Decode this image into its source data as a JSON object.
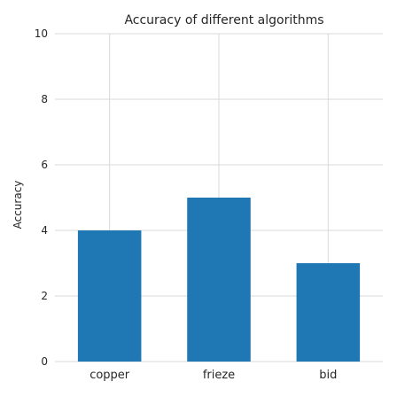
{
  "chart_data": {
    "type": "bar",
    "title": "Accuracy of different algorithms",
    "xlabel": "",
    "ylabel": "Accuracy",
    "categories": [
      "copper",
      "frieze",
      "bid"
    ],
    "values": [
      4,
      5,
      3
    ],
    "ylim": [
      0,
      10
    ],
    "yticks": [
      0,
      2,
      4,
      6,
      8,
      10
    ],
    "grid": true,
    "bar_color": "#1f77b4",
    "grid_color": "#d9d9d9"
  }
}
